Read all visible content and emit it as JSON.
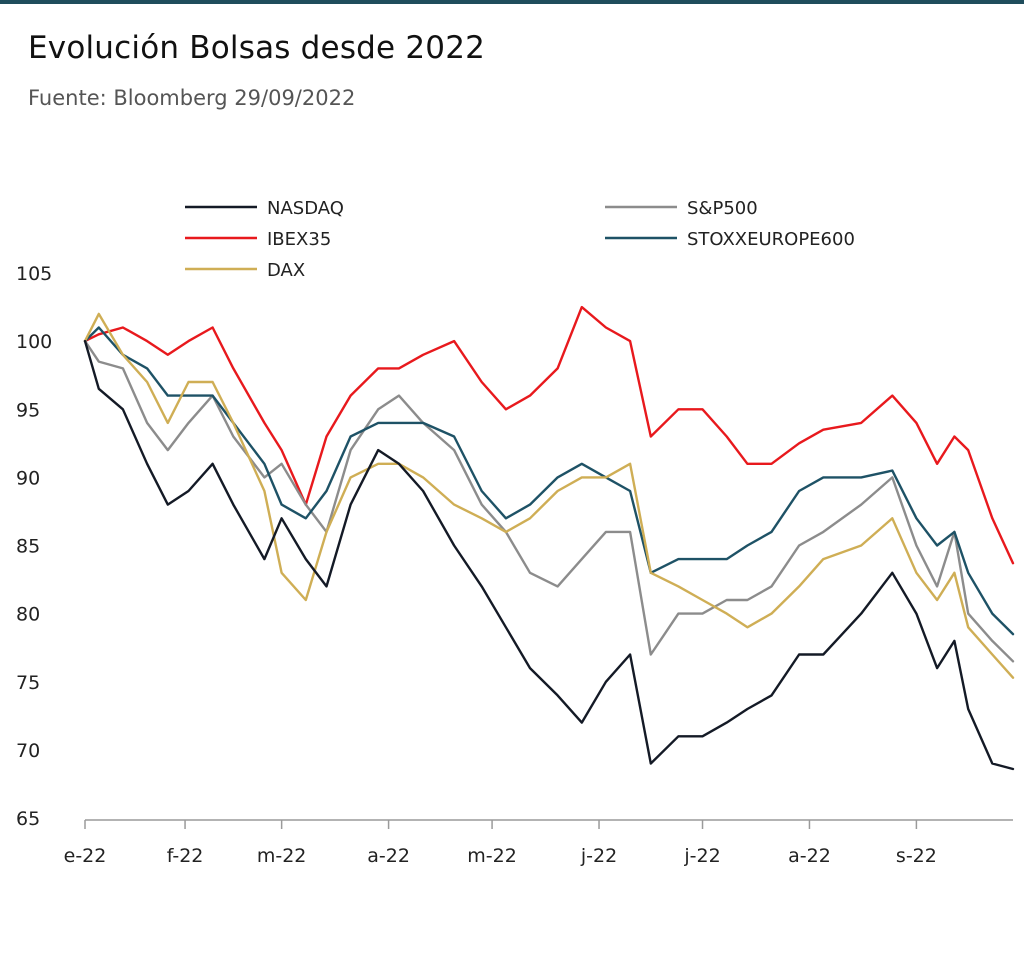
{
  "header": {
    "title": "Evolución Bolsas desde 2022",
    "subtitle": "Fuente: Bloomberg 29/09/2022"
  },
  "chart_data": {
    "type": "line",
    "title": "Evolución Bolsas desde 2022",
    "subtitle": "Fuente: Bloomberg 29/09/2022",
    "xlabel": "",
    "ylabel": "",
    "ylim": [
      65,
      105
    ],
    "yticks": [
      65,
      70,
      75,
      80,
      85,
      90,
      95,
      100,
      105
    ],
    "xlim": [
      "2022-01-03",
      "2022-09-29"
    ],
    "xtick_labels": [
      "e-22",
      "f-22",
      "m-22",
      "a-22",
      "m-22",
      "j-22",
      "j-22",
      "a-22",
      "s-22"
    ],
    "xtick_dates": [
      "2022-01-01",
      "2022-02-01",
      "2022-03-01",
      "2022-04-01",
      "2022-05-01",
      "2022-06-01",
      "2022-07-01",
      "2022-08-01",
      "2022-09-01"
    ],
    "grid": false,
    "legend_position": "top",
    "series": [
      {
        "name": "NASDAQ",
        "color": "#141a26",
        "x": [
          "2022-01-03",
          "2022-01-07",
          "2022-01-14",
          "2022-01-21",
          "2022-01-27",
          "2022-02-02",
          "2022-02-09",
          "2022-02-15",
          "2022-02-24",
          "2022-03-01",
          "2022-03-08",
          "2022-03-14",
          "2022-03-21",
          "2022-03-29",
          "2022-04-04",
          "2022-04-11",
          "2022-04-20",
          "2022-04-28",
          "2022-05-05",
          "2022-05-12",
          "2022-05-20",
          "2022-05-27",
          "2022-06-03",
          "2022-06-10",
          "2022-06-16",
          "2022-06-24",
          "2022-07-01",
          "2022-07-08",
          "2022-07-14",
          "2022-07-21",
          "2022-07-29",
          "2022-08-05",
          "2022-08-16",
          "2022-08-25",
          "2022-09-01",
          "2022-09-07",
          "2022-09-12",
          "2022-09-16",
          "2022-09-23",
          "2022-09-29"
        ],
        "values": [
          100,
          96.5,
          95,
          91,
          88,
          89,
          91,
          88,
          84,
          87,
          84,
          82,
          88,
          92,
          91,
          89,
          85,
          82,
          79,
          76,
          74,
          72,
          75,
          77,
          69,
          71,
          71,
          72,
          73,
          74,
          77,
          77,
          80,
          83,
          80,
          76,
          78,
          73,
          69,
          68.6
        ]
      },
      {
        "name": "S&P500",
        "color": "#8c8c8c",
        "x": [
          "2022-01-03",
          "2022-01-07",
          "2022-01-14",
          "2022-01-21",
          "2022-01-27",
          "2022-02-02",
          "2022-02-09",
          "2022-02-15",
          "2022-02-24",
          "2022-03-01",
          "2022-03-08",
          "2022-03-14",
          "2022-03-21",
          "2022-03-29",
          "2022-04-04",
          "2022-04-11",
          "2022-04-20",
          "2022-04-28",
          "2022-05-05",
          "2022-05-12",
          "2022-05-20",
          "2022-05-27",
          "2022-06-03",
          "2022-06-10",
          "2022-06-16",
          "2022-06-24",
          "2022-07-01",
          "2022-07-08",
          "2022-07-14",
          "2022-07-21",
          "2022-07-29",
          "2022-08-05",
          "2022-08-16",
          "2022-08-25",
          "2022-09-01",
          "2022-09-07",
          "2022-09-12",
          "2022-09-16",
          "2022-09-23",
          "2022-09-29"
        ],
        "values": [
          100,
          98.5,
          98,
          94,
          92,
          94,
          96,
          93,
          90,
          91,
          88,
          86,
          92,
          95,
          96,
          94,
          92,
          88,
          86,
          83,
          82,
          84,
          86,
          86,
          77,
          80,
          80,
          81,
          81,
          82,
          85,
          86,
          88,
          90,
          85,
          82,
          86,
          80,
          78,
          76.5
        ]
      },
      {
        "name": "IBEX35",
        "color": "#e8191d",
        "x": [
          "2022-01-03",
          "2022-01-07",
          "2022-01-14",
          "2022-01-21",
          "2022-01-27",
          "2022-02-02",
          "2022-02-09",
          "2022-02-15",
          "2022-02-24",
          "2022-03-01",
          "2022-03-08",
          "2022-03-14",
          "2022-03-21",
          "2022-03-29",
          "2022-04-04",
          "2022-04-11",
          "2022-04-20",
          "2022-04-28",
          "2022-05-05",
          "2022-05-12",
          "2022-05-20",
          "2022-05-27",
          "2022-06-03",
          "2022-06-10",
          "2022-06-16",
          "2022-06-24",
          "2022-07-01",
          "2022-07-08",
          "2022-07-14",
          "2022-07-21",
          "2022-07-29",
          "2022-08-05",
          "2022-08-16",
          "2022-08-25",
          "2022-09-01",
          "2022-09-07",
          "2022-09-12",
          "2022-09-16",
          "2022-09-23",
          "2022-09-29"
        ],
        "values": [
          100,
          100.5,
          101,
          100,
          99,
          100,
          101,
          98,
          94,
          92,
          88,
          93,
          96,
          98,
          98,
          99,
          100,
          97,
          95,
          96,
          98,
          102.5,
          101,
          100,
          93,
          95,
          95,
          93,
          91,
          91,
          92.5,
          93.5,
          94,
          96,
          94,
          91,
          93,
          92,
          87,
          83.7
        ]
      },
      {
        "name": "STOXXEUROPE600",
        "color": "#1e5266",
        "x": [
          "2022-01-03",
          "2022-01-07",
          "2022-01-14",
          "2022-01-21",
          "2022-01-27",
          "2022-02-02",
          "2022-02-09",
          "2022-02-15",
          "2022-02-24",
          "2022-03-01",
          "2022-03-08",
          "2022-03-14",
          "2022-03-21",
          "2022-03-29",
          "2022-04-04",
          "2022-04-11",
          "2022-04-20",
          "2022-04-28",
          "2022-05-05",
          "2022-05-12",
          "2022-05-20",
          "2022-05-27",
          "2022-06-03",
          "2022-06-10",
          "2022-06-16",
          "2022-06-24",
          "2022-07-01",
          "2022-07-08",
          "2022-07-14",
          "2022-07-21",
          "2022-07-29",
          "2022-08-05",
          "2022-08-16",
          "2022-08-25",
          "2022-09-01",
          "2022-09-07",
          "2022-09-12",
          "2022-09-16",
          "2022-09-23",
          "2022-09-29"
        ],
        "values": [
          100,
          101,
          99,
          98,
          96,
          96,
          96,
          94,
          91,
          88,
          87,
          89,
          93,
          94,
          94,
          94,
          93,
          89,
          87,
          88,
          90,
          91,
          90,
          89,
          83,
          84,
          84,
          84,
          85,
          86,
          89,
          90,
          90,
          90.5,
          87,
          85,
          86,
          83,
          80,
          78.5
        ]
      },
      {
        "name": "DAX",
        "color": "#cfae55",
        "x": [
          "2022-01-03",
          "2022-01-07",
          "2022-01-14",
          "2022-01-21",
          "2022-01-27",
          "2022-02-02",
          "2022-02-09",
          "2022-02-15",
          "2022-02-24",
          "2022-03-01",
          "2022-03-08",
          "2022-03-14",
          "2022-03-21",
          "2022-03-29",
          "2022-04-04",
          "2022-04-11",
          "2022-04-20",
          "2022-04-28",
          "2022-05-05",
          "2022-05-12",
          "2022-05-20",
          "2022-05-27",
          "2022-06-03",
          "2022-06-10",
          "2022-06-16",
          "2022-06-24",
          "2022-07-01",
          "2022-07-08",
          "2022-07-14",
          "2022-07-21",
          "2022-07-29",
          "2022-08-05",
          "2022-08-16",
          "2022-08-25",
          "2022-09-01",
          "2022-09-07",
          "2022-09-12",
          "2022-09-16",
          "2022-09-23",
          "2022-09-29"
        ],
        "values": [
          100,
          102,
          99,
          97,
          94,
          97,
          97,
          94,
          89,
          83,
          81,
          86,
          90,
          91,
          91,
          90,
          88,
          87,
          86,
          87,
          89,
          90,
          90,
          91,
          83,
          82,
          81,
          80,
          79,
          80,
          82,
          84,
          85,
          87,
          83,
          81,
          83,
          79,
          77,
          75.3
        ]
      }
    ]
  }
}
